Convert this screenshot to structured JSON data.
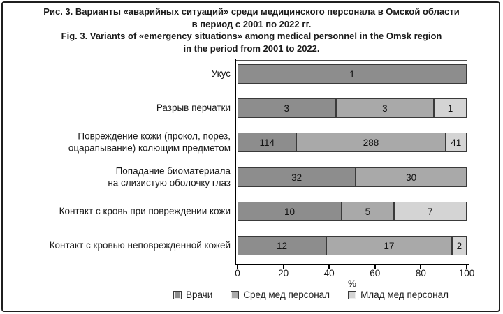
{
  "figure": {
    "title_ru_line1": "Рис. 3. Варианты «аварийных ситуаций» среди медицинского персонала в Омской области",
    "title_ru_line2": "в период с 2001 по 2022 гг.",
    "title_en_line1": "Fig. 3. Variants of «emergency situations» among medical personnel in the Omsk region",
    "title_en_line2": "in the period from 2001 to 2022."
  },
  "chart_data": {
    "type": "bar",
    "variant": "horizontal-100%-stacked",
    "categories": [
      "Укус",
      "Разрыв перчатки",
      "Повреждение кожи (прокол, порез,\nоцарапывание) колющим предметом",
      "Попадание биоматериала\nна слизистую оболочку глаз",
      "Контакт с кровь при повреждении кожи",
      "Контакт с кровью неповрежденной кожей"
    ],
    "series": [
      {
        "name": "Врачи",
        "color": "#8d8d8d",
        "values": [
          1,
          3,
          114,
          32,
          10,
          12
        ]
      },
      {
        "name": "Сред мед персонал",
        "color": "#a9a9a9",
        "values": [
          null,
          3,
          288,
          30,
          5,
          17
        ]
      },
      {
        "name": "Млад мед персонал",
        "color": "#d4d4d4",
        "values": [
          null,
          1,
          41,
          null,
          7,
          2
        ]
      }
    ],
    "xlabel": "%",
    "x_ticks": [
      0,
      20,
      40,
      60,
      80,
      100
    ],
    "xlim": [
      0,
      100
    ],
    "legend_position": "bottom",
    "grid": false,
    "note": "Segment labels are absolute counts; segment lengths are the percentage share of each row total."
  }
}
